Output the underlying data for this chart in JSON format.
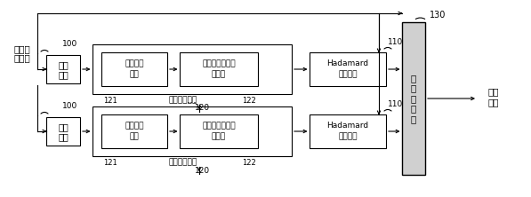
{
  "bg_color": "#ffffff",
  "source_label_line1": "原始信",
  "source_label_line2": "息比特",
  "output_label_line1": "编码",
  "output_label_line2": "符号",
  "ps_label": "并\n转\n串\n单\n元",
  "ps_number": "130",
  "fig_w": 5.97,
  "fig_h": 2.22,
  "dpi": 100,
  "rows": [
    {
      "il_label_line1": "交织",
      "il_label_line2": "单元",
      "par_label_line1": "奇偶校验",
      "par_label_line2": "单元",
      "conv_label_line1": "双二进制卷积编",
      "conv_label_line2": "码单元",
      "had_label_line1": "Hadamard",
      "had_label_line2": "编码单元",
      "num_100": "100",
      "num_110": "110",
      "num_121": "121",
      "num_120": "120",
      "num_122": "122",
      "outer_label": "校验编码单元",
      "dots": "..."
    },
    {
      "il_label_line1": "交织",
      "il_label_line2": "单元",
      "par_label_line1": "奇偶校验",
      "par_label_line2": "单元",
      "conv_label_line1": "双二进制卷积编",
      "conv_label_line2": "码单元",
      "had_label_line1": "Hadamard",
      "had_label_line2": "编码单元",
      "num_100": "100",
      "num_110": "110",
      "num_121": "121",
      "num_120": "120",
      "num_122": "122",
      "outer_label": "校验编码单元",
      "dots": null
    }
  ]
}
